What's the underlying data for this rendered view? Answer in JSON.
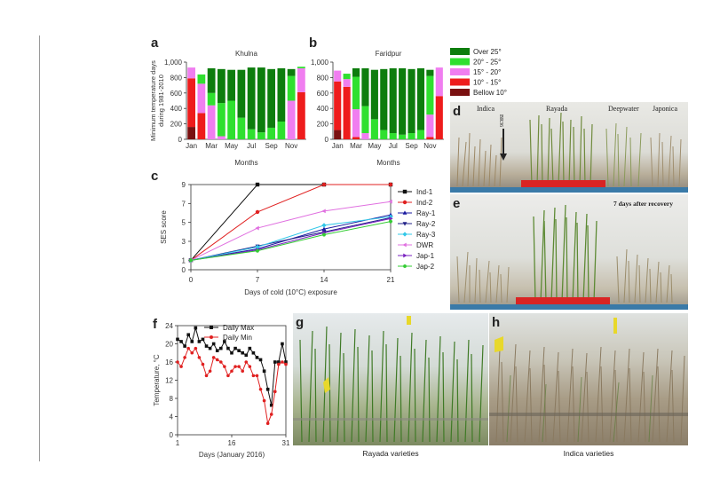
{
  "panels": {
    "a": {
      "letter": "a",
      "title": "Khulna"
    },
    "b": {
      "letter": "b",
      "title": "Faridpur"
    },
    "c": {
      "letter": "c"
    },
    "d": {
      "letter": "d",
      "labels": {
        "indica": "Indica",
        "rayada": "Rayada",
        "deepwater": "Deepwater",
        "japonica": "Japonica",
        "br36": "BR36"
      }
    },
    "e": {
      "letter": "e",
      "label": "7 days after recovery"
    },
    "f": {
      "letter": "f"
    },
    "g": {
      "letter": "g",
      "caption": "Rayada varieties"
    },
    "h": {
      "letter": "h",
      "caption": "Indica varieties"
    }
  },
  "chart_data": [
    {
      "id": "a",
      "type": "bar",
      "stacked": true,
      "title": "Khulna",
      "xlabel": "Months",
      "ylabel": "Minimum temperature days during 1981-2010",
      "ylim": [
        0,
        1000
      ],
      "yticks": [
        "0",
        "200",
        "400",
        "600",
        "800",
        "1,000"
      ],
      "categories": [
        "Jan",
        "Feb",
        "Mar",
        "Apr",
        "May",
        "Jun",
        "Jul",
        "Aug",
        "Sep",
        "Oct",
        "Nov",
        "Dec"
      ],
      "xticks": [
        "Jan",
        "Mar",
        "May",
        "Jul",
        "Sep",
        "Nov"
      ],
      "series": [
        {
          "name": "Bellow 10°",
          "color": "#7a1010",
          "values": [
            160,
            0,
            0,
            0,
            0,
            0,
            0,
            0,
            0,
            0,
            0,
            0
          ]
        },
        {
          "name": "10° - 15°",
          "color": "#ee1c1c",
          "values": [
            630,
            340,
            0,
            0,
            0,
            0,
            0,
            0,
            0,
            0,
            0,
            610
          ]
        },
        {
          "name": "15° - 20°",
          "color": "#f07ef0",
          "values": [
            140,
            380,
            440,
            40,
            0,
            0,
            0,
            0,
            0,
            0,
            500,
            310
          ]
        },
        {
          "name": "20° - 25°",
          "color": "#2fe02f",
          "values": [
            0,
            120,
            160,
            430,
            500,
            280,
            130,
            90,
            150,
            230,
            320,
            20
          ]
        },
        {
          "name": "Over 25°",
          "color": "#0d7d0d",
          "values": [
            0,
            0,
            320,
            440,
            400,
            620,
            800,
            840,
            760,
            690,
            90,
            0
          ]
        }
      ]
    },
    {
      "id": "b",
      "type": "bar",
      "stacked": true,
      "title": "Faridpur",
      "xlabel": "Months",
      "ylim": [
        0,
        1000
      ],
      "yticks": [
        "0",
        "200",
        "400",
        "600",
        "800",
        "1,000"
      ],
      "categories": [
        "Jan",
        "Feb",
        "Mar",
        "Apr",
        "May",
        "Jun",
        "Jul",
        "Aug",
        "Sep",
        "Oct",
        "Nov",
        "Dec"
      ],
      "xticks": [
        "Jan",
        "Mar",
        "May",
        "Jul",
        "Sep",
        "Nov"
      ],
      "series": [
        {
          "name": "Bellow 10°",
          "color": "#7a1010",
          "values": [
            120,
            0,
            0,
            0,
            0,
            0,
            0,
            0,
            0,
            0,
            0,
            0
          ]
        },
        {
          "name": "10° - 15°",
          "color": "#ee1c1c",
          "values": [
            630,
            680,
            30,
            0,
            0,
            0,
            0,
            0,
            0,
            0,
            30,
            560
          ]
        },
        {
          "name": "15° - 20°",
          "color": "#f07ef0",
          "values": [
            140,
            100,
            360,
            80,
            0,
            0,
            0,
            0,
            0,
            0,
            290,
            370
          ]
        },
        {
          "name": "20° - 25°",
          "color": "#2fe02f",
          "values": [
            0,
            70,
            420,
            350,
            260,
            120,
            80,
            60,
            80,
            120,
            500,
            0
          ]
        },
        {
          "name": "Over 25°",
          "color": "#0d7d0d",
          "values": [
            0,
            0,
            110,
            490,
            640,
            790,
            840,
            860,
            830,
            800,
            80,
            0
          ]
        }
      ]
    },
    {
      "id": "c",
      "type": "line",
      "xlabel": "Days of cold (10°C) exposure",
      "ylabel": "SES score",
      "x": [
        0,
        7,
        14,
        21
      ],
      "xticks": [
        "0",
        "7",
        "14",
        "21"
      ],
      "ylim": [
        0,
        9
      ],
      "yticks": [
        "0",
        "1",
        "3",
        "5",
        "7",
        "9"
      ],
      "series": [
        {
          "name": "Ind-1",
          "color": "#111111",
          "marker": "square",
          "values": [
            1,
            9,
            9,
            9
          ]
        },
        {
          "name": "Ind-2",
          "color": "#e02020",
          "marker": "circle",
          "values": [
            1,
            6.1,
            9,
            9
          ]
        },
        {
          "name": "Ray-1",
          "color": "#1a1aa0",
          "marker": "triangle-up",
          "values": [
            1,
            2.2,
            4.3,
            5.8
          ]
        },
        {
          "name": "Ray-2",
          "color": "#222288",
          "marker": "triangle-down",
          "values": [
            1,
            2.5,
            4.0,
            5.5
          ]
        },
        {
          "name": "Ray-3",
          "color": "#33c8e8",
          "marker": "diamond",
          "values": [
            1,
            2.4,
            4.7,
            5.6
          ]
        },
        {
          "name": "DWR",
          "color": "#e070e0",
          "marker": "triangle-left",
          "values": [
            1,
            4.4,
            6.2,
            7.2
          ]
        },
        {
          "name": "Jap-1",
          "color": "#7a22c0",
          "marker": "triangle-right",
          "values": [
            1,
            2.1,
            3.9,
            5.4
          ]
        },
        {
          "name": "Jap-2",
          "color": "#33cc33",
          "marker": "hexagon",
          "values": [
            1,
            2.0,
            3.7,
            5.1
          ]
        }
      ]
    },
    {
      "id": "f",
      "type": "line",
      "xlabel": "Days (January 2016)",
      "ylabel": "Temperature, °C",
      "ylim": [
        0,
        24
      ],
      "yticks": [
        "0",
        "4",
        "8",
        "12",
        "16",
        "20",
        "24"
      ],
      "xlim": [
        1,
        31
      ],
      "xticks": [
        "1",
        "16",
        "31"
      ],
      "x": [
        1,
        2,
        3,
        4,
        5,
        6,
        7,
        8,
        9,
        10,
        11,
        12,
        13,
        14,
        15,
        16,
        17,
        18,
        19,
        20,
        21,
        22,
        23,
        24,
        25,
        26,
        27,
        28,
        29,
        30,
        31
      ],
      "series": [
        {
          "name": "Daily Max",
          "color": "#111111",
          "marker": "square",
          "values": [
            21,
            20.5,
            19.5,
            22,
            20.5,
            23.5,
            20.5,
            21,
            19.5,
            19,
            20,
            18.5,
            19,
            20.5,
            19,
            18,
            19,
            18.5,
            18,
            17.5,
            19,
            18,
            17,
            16.5,
            14,
            10,
            6.5,
            16,
            16,
            20,
            16
          ]
        },
        {
          "name": "Daily Min",
          "color": "#e02020",
          "marker": "circle",
          "values": [
            16,
            15,
            17,
            19,
            18,
            19,
            17,
            15.5,
            13,
            14,
            17,
            16.5,
            16,
            15,
            13,
            14,
            15,
            15,
            14,
            16,
            15,
            13,
            13,
            10,
            7.5,
            2.5,
            4.5,
            9.5,
            15.5,
            16,
            15.5
          ]
        }
      ]
    }
  ]
}
